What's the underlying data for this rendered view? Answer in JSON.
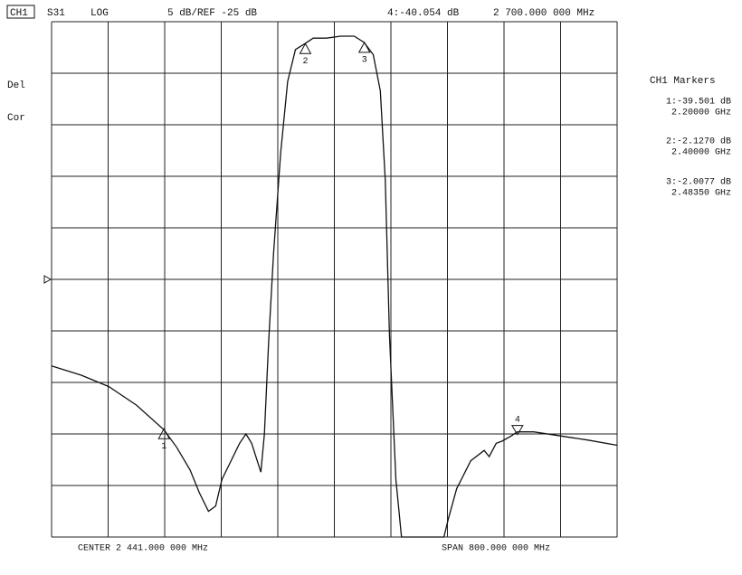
{
  "header": {
    "channel": "CH1",
    "param": "S31",
    "format": "LOG",
    "scale": "5 dB/REF -25 dB",
    "active_readout": "4:-40.054 dB",
    "active_freq": "2 700.000 000 MHz"
  },
  "side": {
    "del": "Del",
    "cor": "Cor"
  },
  "marker_panel": {
    "title": "CH1 Markers",
    "entries": [
      {
        "value": "1:-39.501 dB",
        "freq": "2.20000 GHz"
      },
      {
        "value": "2:-2.1270 dB",
        "freq": "2.40000 GHz"
      },
      {
        "value": "3:-2.0077 dB",
        "freq": "2.48350 GHz"
      }
    ]
  },
  "footer": {
    "center": "CENTER 2 441.000 000 MHz",
    "span": "SPAN 800.000 000 MHz"
  },
  "chart_data": {
    "type": "line",
    "color": "#111111",
    "x": [
      2041,
      2083,
      2122,
      2161,
      2200,
      2218,
      2237,
      2250,
      2263,
      2273,
      2282,
      2295,
      2307,
      2316,
      2324,
      2330,
      2337,
      2342,
      2348,
      2355,
      2365,
      2375,
      2386,
      2400,
      2411,
      2430,
      2450,
      2469,
      2483,
      2496,
      2506,
      2513,
      2519,
      2528,
      2536,
      2596,
      2602,
      2614,
      2634,
      2653,
      2660,
      2670,
      2678,
      2691,
      2700,
      2723,
      2762,
      2800,
      2841
    ],
    "values": [
      -33.4,
      -34.3,
      -35.4,
      -37.2,
      -39.6,
      -41.3,
      -43.5,
      -45.7,
      -47.5,
      -47.0,
      -44.4,
      -42.6,
      -40.9,
      -40.0,
      -40.9,
      -42.2,
      -43.7,
      -40.0,
      -31.2,
      -22.5,
      -12.8,
      -5.8,
      -2.7,
      -2.1,
      -1.6,
      -1.6,
      -1.4,
      -1.4,
      -2.0,
      -3.2,
      -6.7,
      -15.4,
      -30.4,
      -44.4,
      -50.0,
      -50.0,
      -48.3,
      -45.3,
      -42.6,
      -41.6,
      -42.2,
      -40.9,
      -40.7,
      -40.2,
      -39.8,
      -39.8,
      -40.2,
      -40.6,
      -41.1
    ],
    "xlim": [
      2041,
      2841
    ],
    "ylim": [
      -50,
      0
    ],
    "xticks": [
      2041,
      2121,
      2201,
      2281,
      2361,
      2441,
      2521,
      2601,
      2681,
      2761,
      2841
    ],
    "yticks": [
      -50,
      -45,
      -40,
      -35,
      -30,
      -25,
      -20,
      -15,
      -10,
      -5,
      0
    ],
    "grid": true,
    "ref_level": -25,
    "markers": [
      {
        "label": "1",
        "x": 2200,
        "value": -39.501,
        "active": false
      },
      {
        "label": "2",
        "x": 2400,
        "value": -2.127,
        "active": false
      },
      {
        "label": "3",
        "x": 2483.5,
        "value": -2.0077,
        "active": false
      },
      {
        "label": "4",
        "x": 2700,
        "value": -40.054,
        "active": true
      }
    ]
  }
}
